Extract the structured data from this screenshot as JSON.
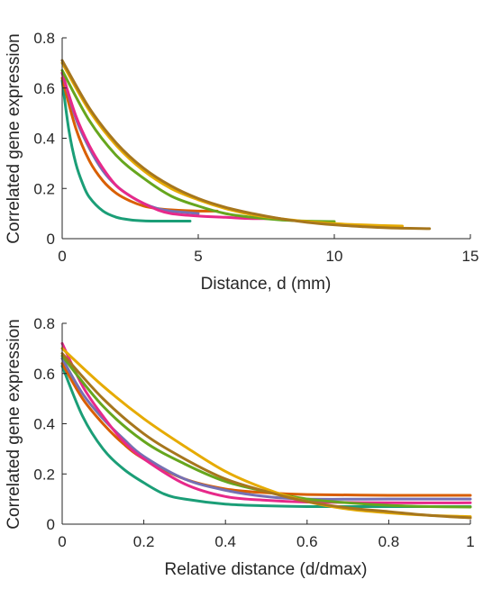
{
  "chart_data": [
    {
      "type": "line",
      "xlabel": "Distance, d (mm)",
      "ylabel": "Correlated gene expression",
      "xlim": [
        0,
        15
      ],
      "ylim": [
        0,
        0.8
      ],
      "xticks": [
        0,
        5,
        10,
        15
      ],
      "xtick_labels": [
        "0",
        "5",
        "10",
        "15"
      ],
      "yticks": [
        0,
        0.2,
        0.4,
        0.6,
        0.8
      ],
      "ytick_labels": [
        "0",
        "0.2",
        "0.4",
        "0.6",
        "0.8"
      ],
      "grid": false,
      "series": [
        {
          "color": "#1b9e77",
          "x": [
            0,
            0.25,
            0.5,
            0.75,
            1,
            1.5,
            2,
            2.5,
            3,
            3.5,
            4,
            4.7
          ],
          "y": [
            0.63,
            0.43,
            0.3,
            0.22,
            0.165,
            0.11,
            0.085,
            0.075,
            0.071,
            0.07,
            0.07,
            0.07
          ]
        },
        {
          "color": "#d95f02",
          "x": [
            0,
            0.5,
            1,
            1.5,
            2,
            2.5,
            3,
            3.5,
            4,
            5,
            5.7
          ],
          "y": [
            0.64,
            0.44,
            0.31,
            0.23,
            0.18,
            0.15,
            0.13,
            0.12,
            0.115,
            0.11,
            0.11
          ]
        },
        {
          "color": "#7570b3",
          "x": [
            0,
            0.5,
            1,
            1.5,
            2,
            2.5,
            3,
            3.5,
            4,
            4.5,
            5
          ],
          "y": [
            0.66,
            0.48,
            0.36,
            0.27,
            0.21,
            0.17,
            0.14,
            0.12,
            0.11,
            0.105,
            0.1
          ]
        },
        {
          "color": "#e7298a",
          "x": [
            0,
            0.5,
            1,
            1.5,
            2,
            2.5,
            3,
            3.5,
            4,
            5,
            6,
            7,
            8
          ],
          "y": [
            0.66,
            0.49,
            0.37,
            0.28,
            0.21,
            0.17,
            0.14,
            0.115,
            0.1,
            0.09,
            0.085,
            0.08,
            0.08
          ]
        },
        {
          "color": "#66a61e",
          "x": [
            0,
            1,
            2,
            3,
            4,
            5,
            6,
            7,
            8,
            9,
            10
          ],
          "y": [
            0.67,
            0.47,
            0.33,
            0.24,
            0.17,
            0.13,
            0.1,
            0.085,
            0.075,
            0.07,
            0.068
          ]
        },
        {
          "color": "#e6ab02",
          "x": [
            0,
            1,
            2,
            3,
            4,
            5,
            6,
            7,
            8,
            9,
            10,
            11,
            12.5
          ],
          "y": [
            0.7,
            0.51,
            0.37,
            0.27,
            0.2,
            0.155,
            0.12,
            0.095,
            0.08,
            0.068,
            0.06,
            0.055,
            0.05
          ]
        },
        {
          "color": "#a6761d",
          "x": [
            0,
            1,
            2,
            3,
            4,
            5,
            6,
            7,
            8,
            9,
            10,
            11,
            12,
            13.5
          ],
          "y": [
            0.71,
            0.52,
            0.38,
            0.28,
            0.21,
            0.16,
            0.125,
            0.1,
            0.08,
            0.065,
            0.055,
            0.048,
            0.043,
            0.04
          ]
        }
      ]
    },
    {
      "type": "line",
      "xlabel": "Relative distance (d/dmax)",
      "ylabel": "Correlated gene expression",
      "xlim": [
        0,
        1
      ],
      "ylim": [
        0,
        0.8
      ],
      "xticks": [
        0,
        0.2,
        0.4,
        0.6,
        0.8,
        1
      ],
      "xtick_labels": [
        "0",
        "0.2",
        "0.4",
        "0.6",
        "0.8",
        "1"
      ],
      "yticks": [
        0,
        0.2,
        0.4,
        0.6,
        0.8
      ],
      "ytick_labels": [
        "0",
        "0.2",
        "0.4",
        "0.6",
        "0.8"
      ],
      "grid": false,
      "series": [
        {
          "color": "#1b9e77",
          "x": [
            0,
            0.05,
            0.1,
            0.15,
            0.2,
            0.25,
            0.3,
            0.4,
            0.5,
            0.6,
            0.8,
            1
          ],
          "y": [
            0.63,
            0.43,
            0.3,
            0.22,
            0.165,
            0.12,
            0.1,
            0.08,
            0.073,
            0.07,
            0.07,
            0.07
          ]
        },
        {
          "color": "#d95f02",
          "x": [
            0,
            0.05,
            0.1,
            0.15,
            0.2,
            0.3,
            0.4,
            0.5,
            0.6,
            0.8,
            1
          ],
          "y": [
            0.64,
            0.5,
            0.4,
            0.32,
            0.26,
            0.18,
            0.14,
            0.125,
            0.118,
            0.115,
            0.115
          ]
        },
        {
          "color": "#7570b3",
          "x": [
            0,
            0.05,
            0.1,
            0.15,
            0.2,
            0.3,
            0.4,
            0.5,
            0.6,
            0.8,
            1
          ],
          "y": [
            0.66,
            0.52,
            0.42,
            0.34,
            0.27,
            0.18,
            0.135,
            0.11,
            0.1,
            0.1,
            0.1
          ]
        },
        {
          "color": "#e7298a",
          "x": [
            0,
            0.05,
            0.1,
            0.15,
            0.2,
            0.3,
            0.4,
            0.5,
            0.6,
            0.8,
            1
          ],
          "y": [
            0.72,
            0.55,
            0.43,
            0.33,
            0.26,
            0.16,
            0.11,
            0.095,
            0.088,
            0.085,
            0.085
          ]
        },
        {
          "color": "#66a61e",
          "x": [
            0,
            0.1,
            0.2,
            0.3,
            0.4,
            0.5,
            0.6,
            0.7,
            0.8,
            0.9,
            1
          ],
          "y": [
            0.67,
            0.47,
            0.33,
            0.24,
            0.17,
            0.13,
            0.1,
            0.085,
            0.075,
            0.07,
            0.068
          ]
        },
        {
          "color": "#e6ab02",
          "x": [
            0,
            0.1,
            0.2,
            0.3,
            0.4,
            0.5,
            0.6,
            0.7,
            0.8,
            0.9,
            1
          ],
          "y": [
            0.7,
            0.55,
            0.42,
            0.31,
            0.21,
            0.14,
            0.09,
            0.06,
            0.045,
            0.035,
            0.03
          ]
        },
        {
          "color": "#a6761d",
          "x": [
            0,
            0.1,
            0.2,
            0.3,
            0.4,
            0.5,
            0.6,
            0.7,
            0.8,
            0.9,
            1
          ],
          "y": [
            0.68,
            0.5,
            0.36,
            0.26,
            0.18,
            0.13,
            0.09,
            0.065,
            0.05,
            0.035,
            0.025
          ]
        }
      ]
    }
  ]
}
